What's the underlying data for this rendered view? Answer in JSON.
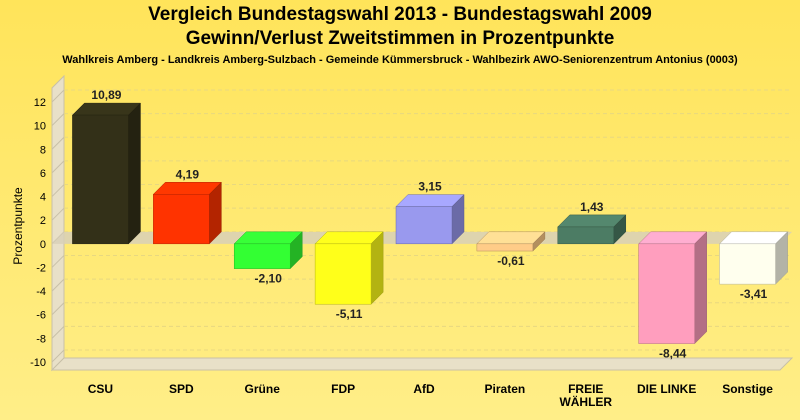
{
  "chart_data": {
    "type": "bar",
    "title_line1": "Vergleich Bundestagswahl 2013 - Bundestagswahl 2009",
    "title_line2": "Gewinn/Verlust Zweitstimmen in Prozentpunkte",
    "subtitle": "Wahlkreis Amberg - Landkreis Amberg-Sulzbach - Gemeinde Kümmersbruck - Wahlbezirk AWO-Seniorenzentrum Antonius (0003)",
    "ylabel": "Prozentpunkte",
    "ylim": [
      -10,
      12
    ],
    "yticks": [
      "12",
      "10",
      "8",
      "6",
      "4",
      "2",
      "0",
      "-2",
      "-4",
      "-6",
      "-8",
      "-10"
    ],
    "categories": [
      "CSU",
      "SPD",
      "Grüne",
      "FDP",
      "AfD",
      "Piraten",
      "FREIE WÄHLER",
      "DIE LINKE",
      "Sonstige"
    ],
    "category_lines": [
      [
        "CSU"
      ],
      [
        "SPD"
      ],
      [
        "Grüne"
      ],
      [
        "FDP"
      ],
      [
        "AfD"
      ],
      [
        "Piraten"
      ],
      [
        "FREIE",
        "WÄHLER"
      ],
      [
        "DIE LINKE"
      ],
      [
        "Sonstige"
      ]
    ],
    "values": [
      10.89,
      4.19,
      -2.1,
      -5.11,
      3.15,
      -0.61,
      1.43,
      -8.44,
      -3.41
    ],
    "value_labels": [
      "10,89",
      "4,19",
      "-2,10",
      "-5,11",
      "3,15",
      "-0,61",
      "1,43",
      "-8,44",
      "-3,41"
    ],
    "colors": [
      "#333018",
      "#FF3300",
      "#33FF33",
      "#FFFF1A",
      "#9999EE",
      "#FFCC88",
      "#4C7C64",
      "#FF9EBE",
      "#FFFFEE"
    ],
    "grid": true
  }
}
